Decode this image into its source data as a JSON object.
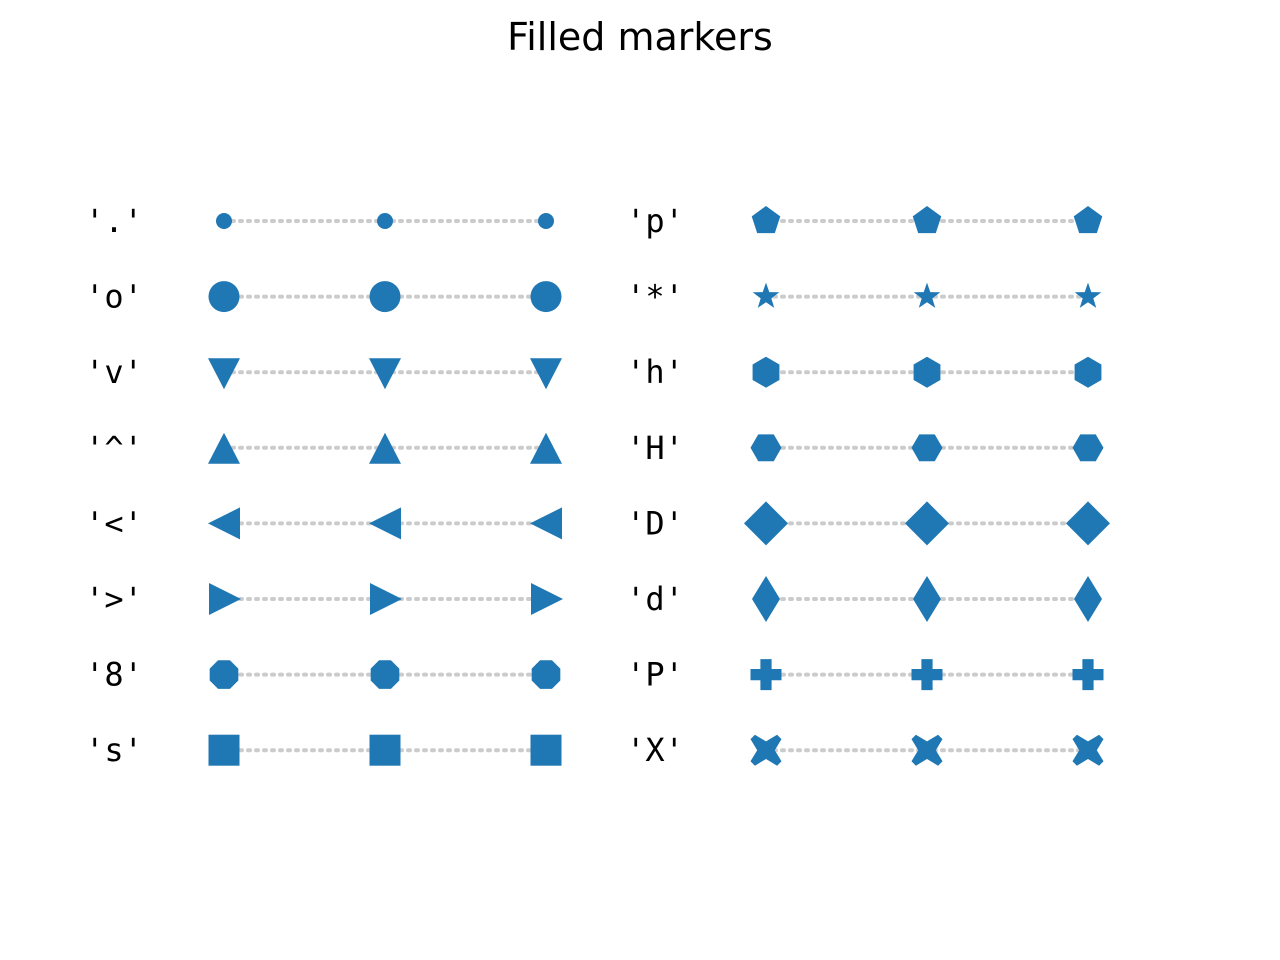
{
  "chart_data": {
    "type": "scatter",
    "title": "Filled markers",
    "grid": false,
    "x": [
      0,
      1,
      2
    ],
    "marker_color": "#1f77b4",
    "line_color": "#cccccc",
    "panels": [
      {
        "series": [
          {
            "name": "'.'",
            "marker": "point"
          },
          {
            "name": "'o'",
            "marker": "circle"
          },
          {
            "name": "'v'",
            "marker": "triangle-down"
          },
          {
            "name": "'^'",
            "marker": "triangle-up"
          },
          {
            "name": "'<'",
            "marker": "triangle-left"
          },
          {
            "name": "'>'",
            "marker": "triangle-right"
          },
          {
            "name": "'8'",
            "marker": "octagon"
          },
          {
            "name": "'s'",
            "marker": "square"
          }
        ]
      },
      {
        "series": [
          {
            "name": "'p'",
            "marker": "pentagon"
          },
          {
            "name": "'*'",
            "marker": "star"
          },
          {
            "name": "'h'",
            "marker": "hexagon1"
          },
          {
            "name": "'H'",
            "marker": "hexagon2"
          },
          {
            "name": "'D'",
            "marker": "diamond"
          },
          {
            "name": "'d'",
            "marker": "thin-diamond"
          },
          {
            "name": "'P'",
            "marker": "plus-filled"
          },
          {
            "name": "'X'",
            "marker": "x-filled"
          }
        ]
      }
    ]
  }
}
